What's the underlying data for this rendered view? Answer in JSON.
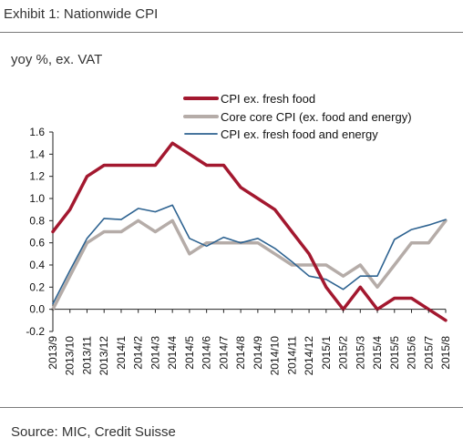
{
  "header": {
    "exhibit_title": "Exhibit 1: Nationwide CPI",
    "subtitle": "yoy %,  ex. VAT"
  },
  "footer": {
    "source": "Source: MIC, Credit Suisse"
  },
  "chart_data": {
    "type": "line",
    "title": "",
    "xlabel": "",
    "ylabel": "",
    "ylim": [
      -0.2,
      1.6
    ],
    "yticks": [
      -0.2,
      0.0,
      0.2,
      0.4,
      0.6,
      0.8,
      1.0,
      1.2,
      1.4,
      1.6
    ],
    "ytick_labels": [
      "-0.2",
      "0.0",
      "0.2",
      "0.4",
      "0.6",
      "0.8",
      "1.0",
      "1.2",
      "1.4",
      "1.6"
    ],
    "grid": false,
    "legend_position": "top-right",
    "categories": [
      "2013/9",
      "2013/10",
      "2013/11",
      "2013/12",
      "2014/1",
      "2014/2",
      "2014/3",
      "2014/4",
      "2014/5",
      "2014/6",
      "2014/7",
      "2014/8",
      "2014/9",
      "2014/10",
      "2014/11",
      "2014/12",
      "2015/1",
      "2015/2",
      "2015/3",
      "2015/4",
      "2015/5",
      "2015/6",
      "2015/7",
      "2015/8"
    ],
    "xtick_labels": [
      "2013/9",
      "2013/10",
      "2013/11",
      "2013/12",
      "2014/1",
      "2014/2",
      "2014/3",
      "2014/4",
      "2014/5",
      "2014/6",
      "2014/7",
      "2014/8",
      "2014/9",
      "2014/10",
      "2014/11",
      "2014/12",
      "2015/1",
      "2015/2",
      "2015/3",
      "2015/4",
      "2015/5",
      "2015/6",
      "2015/7",
      "2015/8"
    ],
    "series": [
      {
        "name": "CPI ex. fresh food",
        "color": "#a3182f",
        "stroke_style": "thick",
        "values": [
          0.7,
          0.9,
          1.2,
          1.3,
          1.3,
          1.3,
          1.3,
          1.5,
          1.4,
          1.3,
          1.3,
          1.1,
          1.0,
          0.9,
          0.7,
          0.5,
          0.2,
          0.0,
          0.2,
          0.0,
          0.1,
          0.1,
          0.0,
          -0.1
        ]
      },
      {
        "name": "Core core CPI (ex. food and energy)",
        "color": "#b5aca8",
        "stroke_style": "thick",
        "values": [
          0.0,
          0.3,
          0.6,
          0.7,
          0.7,
          0.8,
          0.7,
          0.8,
          0.5,
          0.6,
          0.6,
          0.6,
          0.6,
          0.5,
          0.4,
          0.4,
          0.4,
          0.3,
          0.4,
          0.2,
          0.4,
          0.6,
          0.6,
          0.8
        ]
      },
      {
        "name": "CPI ex. fresh food and energy",
        "color": "#2e6391",
        "stroke_style": "thin",
        "values": [
          0.05,
          0.35,
          0.64,
          0.82,
          0.81,
          0.91,
          0.88,
          0.94,
          0.64,
          0.57,
          0.65,
          0.6,
          0.64,
          0.55,
          0.43,
          0.3,
          0.27,
          0.18,
          0.3,
          0.3,
          0.63,
          0.72,
          0.76,
          0.81
        ]
      }
    ]
  }
}
